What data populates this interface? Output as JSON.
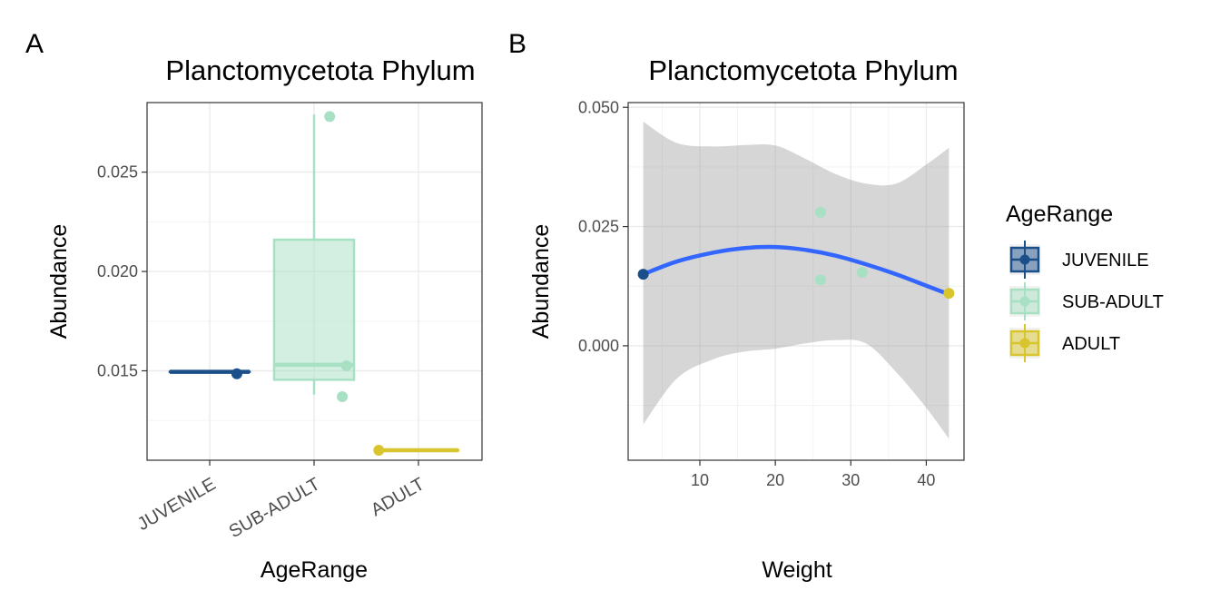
{
  "chart_data": [
    {
      "panel_tag": "A",
      "type": "box",
      "title": "Planctomycetota Phylum",
      "xlabel": "AgeRange",
      "ylabel": "Abundance",
      "categories": [
        "JUVENILE",
        "SUB-ADULT",
        "ADULT"
      ],
      "ylim": [
        0.0105,
        0.0285
      ],
      "yticks": [
        0.015,
        0.02,
        0.025
      ],
      "ytick_labels": [
        "0.015",
        "0.020",
        "0.025"
      ],
      "grid": true,
      "boxes": [
        {
          "category": "JUVENILE",
          "color": "#1b4f8a",
          "min": 0.01495,
          "q1": 0.01495,
          "median": 0.01495,
          "q3": 0.01495,
          "max": 0.01495
        },
        {
          "category": "SUB-ADULT",
          "color": "#a8e0c4",
          "min": 0.0138,
          "q1": 0.01455,
          "median": 0.0153,
          "q3": 0.0216,
          "max": 0.0279
        },
        {
          "category": "ADULT",
          "color": "#d8c52e",
          "min": 0.011,
          "q1": 0.011,
          "median": 0.011,
          "q3": 0.011,
          "max": 0.011
        }
      ],
      "points": [
        {
          "category": "JUVENILE",
          "jitter": 0.26,
          "y": 0.01485,
          "color": "#1b4f8a"
        },
        {
          "category": "SUB-ADULT",
          "jitter": 0.15,
          "y": 0.0278,
          "color": "#a8e0c4"
        },
        {
          "category": "SUB-ADULT",
          "jitter": 0.31,
          "y": 0.01525,
          "color": "#a8e0c4"
        },
        {
          "category": "SUB-ADULT",
          "jitter": 0.27,
          "y": 0.0137,
          "color": "#a8e0c4"
        },
        {
          "category": "ADULT",
          "jitter": -0.38,
          "y": 0.011,
          "color": "#d8c52e"
        }
      ]
    },
    {
      "panel_tag": "B",
      "type": "scatter",
      "title": "Planctomycetota Phylum",
      "xlabel": "Weight",
      "ylabel": "Abundance",
      "xlim": [
        0.5,
        45
      ],
      "ylim": [
        -0.024,
        0.051
      ],
      "xticks": [
        10,
        20,
        30,
        40
      ],
      "xtick_labels": [
        "10",
        "20",
        "30",
        "40"
      ],
      "yticks": [
        0.0,
        0.025,
        0.05
      ],
      "ytick_labels": [
        "0.000",
        "0.025",
        "0.050"
      ],
      "grid": true,
      "points": [
        {
          "x": 2.5,
          "y": 0.015,
          "group": "JUVENILE",
          "color": "#1b4f8a"
        },
        {
          "x": 26,
          "y": 0.028,
          "group": "SUB-ADULT",
          "color": "#a8e0c4"
        },
        {
          "x": 26,
          "y": 0.0138,
          "group": "SUB-ADULT",
          "color": "#a8e0c4"
        },
        {
          "x": 31.5,
          "y": 0.0154,
          "group": "SUB-ADULT",
          "color": "#a8e0c4"
        },
        {
          "x": 43,
          "y": 0.011,
          "group": "ADULT",
          "color": "#d8c52e"
        }
      ],
      "smooth": {
        "color": "#3366ff",
        "band_color": "#999999",
        "x": [
          2.5,
          7,
          12,
          16,
          20,
          24,
          28,
          32,
          36,
          40,
          43
        ],
        "fit": [
          0.015,
          0.0177,
          0.0196,
          0.0205,
          0.0207,
          0.0201,
          0.0189,
          0.0171,
          0.015,
          0.0126,
          0.0108
        ],
        "upper": [
          0.047,
          0.0425,
          0.0418,
          0.0421,
          0.042,
          0.0392,
          0.036,
          0.034,
          0.034,
          0.038,
          0.0415
        ],
        "lower": [
          -0.0165,
          -0.0068,
          -0.0027,
          -0.0012,
          -0.0006,
          0.0005,
          0.0012,
          0.0005,
          -0.0055,
          -0.013,
          -0.0195
        ]
      }
    }
  ],
  "legend": {
    "title": "AgeRange",
    "placement": "right",
    "items": [
      {
        "label": "JUVENILE",
        "color": "#1b4f8a"
      },
      {
        "label": "SUB-ADULT",
        "color": "#a8e0c4"
      },
      {
        "label": "ADULT",
        "color": "#d8c52e"
      }
    ]
  }
}
